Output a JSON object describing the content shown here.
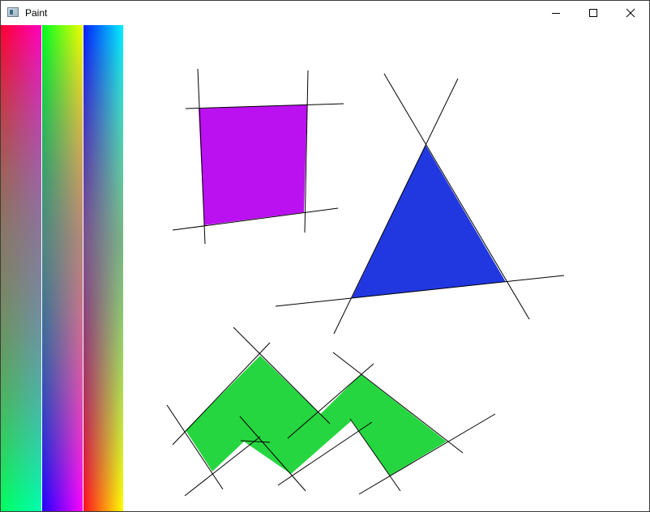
{
  "window": {
    "title": "Paint",
    "icons": {
      "app": "app-icon",
      "minimize": "minimize-icon",
      "maximize": "maximize-icon",
      "close": "close-icon"
    }
  },
  "palette": {
    "strips": [
      {
        "name": "red-magenta-to-green-cyan",
        "top_left": "#ff0030",
        "top_right": "#ff00c0",
        "bottom_left": "#00ff60",
        "bottom_right": "#00ffb0"
      },
      {
        "name": "green-yellow-to-blue-magenta",
        "top_left": "#00ff20",
        "top_right": "#f0ff00",
        "bottom_left": "#2000ff",
        "bottom_right": "#ff00ff"
      },
      {
        "name": "blue-cyan-to-red-yellow",
        "top_left": "#0020ff",
        "top_right": "#00f0ff",
        "bottom_left": "#ff1020",
        "bottom_right": "#ffff00"
      }
    ]
  },
  "shapes": {
    "square_color": "#bb10f0",
    "triangle_color": "#2138e0",
    "chevron_color": "#26d640",
    "line_color": "#000000"
  }
}
